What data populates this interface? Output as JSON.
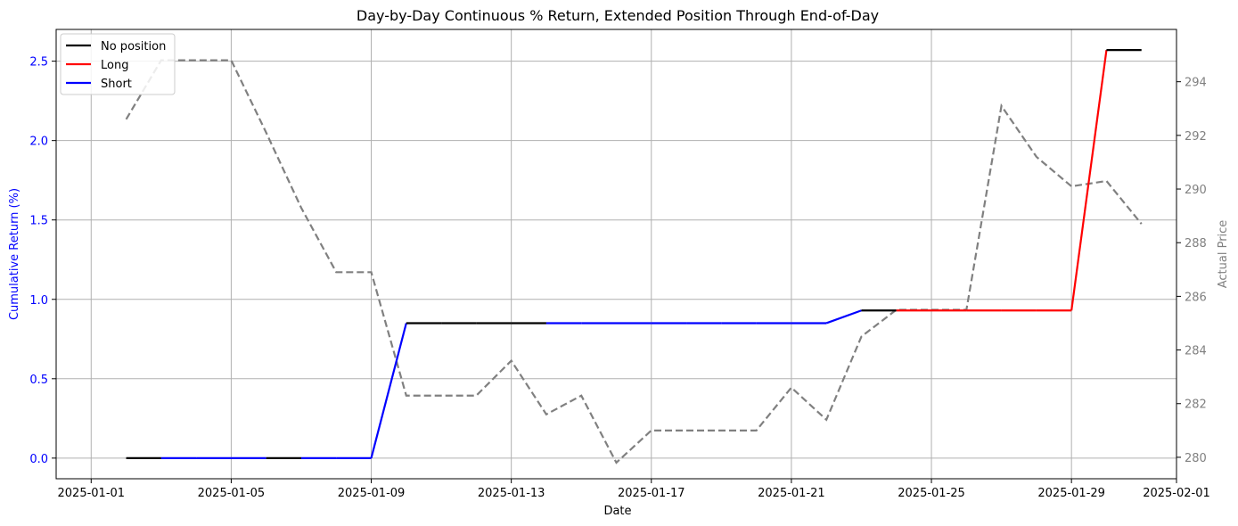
{
  "chart_data": {
    "type": "line",
    "title": "Day-by-Day Continuous % Return, Extended Position Through End-of-Day",
    "xlabel": "Date",
    "ylabel_left": "Cumulative Return (%)",
    "ylabel_right": "Actual Price",
    "grid": true,
    "legend_position": "top-left",
    "x_axis": {
      "type": "date",
      "min": "2025-01-00",
      "max": "2025-02-01",
      "tick_labels": [
        "2025-01-01",
        "2025-01-05",
        "2025-01-09",
        "2025-01-13",
        "2025-01-17",
        "2025-01-21",
        "2025-01-25",
        "2025-01-29",
        "2025-02-01"
      ]
    },
    "y_left": {
      "min": -0.13,
      "max": 2.7,
      "ticks": [
        0.0,
        0.5,
        1.0,
        1.5,
        2.0,
        2.5
      ],
      "tick_labels": [
        "0.0",
        "0.5",
        "1.0",
        "1.5",
        "2.0",
        "2.5"
      ],
      "color": "#0000ff"
    },
    "y_right": {
      "min": 279.2,
      "max": 295.95,
      "ticks": [
        280,
        282,
        284,
        286,
        288,
        290,
        292,
        294
      ],
      "tick_labels": [
        "280",
        "282",
        "284",
        "286",
        "288",
        "290",
        "292",
        "294"
      ],
      "color": "#808080"
    },
    "legend": [
      {
        "label": "No position",
        "color": "#000000"
      },
      {
        "label": "Long",
        "color": "#ff0000"
      },
      {
        "label": "Short",
        "color": "#0000ff"
      }
    ],
    "position_segments": [
      {
        "x1": "2025-01-02",
        "y1": 0.0,
        "x2": "2025-01-03",
        "y2": 0.0,
        "position": "No position"
      },
      {
        "x1": "2025-01-03",
        "y1": 0.0,
        "x2": "2025-01-04",
        "y2": 0.0,
        "position": "Short"
      },
      {
        "x1": "2025-01-04",
        "y1": 0.0,
        "x2": "2025-01-05",
        "y2": 0.0,
        "position": "Short"
      },
      {
        "x1": "2025-01-05",
        "y1": 0.0,
        "x2": "2025-01-06",
        "y2": 0.0,
        "position": "Short"
      },
      {
        "x1": "2025-01-06",
        "y1": 0.0,
        "x2": "2025-01-07",
        "y2": 0.0,
        "position": "No position"
      },
      {
        "x1": "2025-01-07",
        "y1": 0.0,
        "x2": "2025-01-08",
        "y2": 0.0,
        "position": "Short"
      },
      {
        "x1": "2025-01-08",
        "y1": 0.0,
        "x2": "2025-01-09",
        "y2": 0.0,
        "position": "Short"
      },
      {
        "x1": "2025-01-09",
        "y1": 0.0,
        "x2": "2025-01-10",
        "y2": 0.85,
        "position": "Short"
      },
      {
        "x1": "2025-01-10",
        "y1": 0.85,
        "x2": "2025-01-11",
        "y2": 0.85,
        "position": "No position"
      },
      {
        "x1": "2025-01-11",
        "y1": 0.85,
        "x2": "2025-01-12",
        "y2": 0.85,
        "position": "No position"
      },
      {
        "x1": "2025-01-12",
        "y1": 0.85,
        "x2": "2025-01-13",
        "y2": 0.85,
        "position": "No position"
      },
      {
        "x1": "2025-01-13",
        "y1": 0.85,
        "x2": "2025-01-14",
        "y2": 0.85,
        "position": "No position"
      },
      {
        "x1": "2025-01-14",
        "y1": 0.85,
        "x2": "2025-01-15",
        "y2": 0.85,
        "position": "Short"
      },
      {
        "x1": "2025-01-15",
        "y1": 0.85,
        "x2": "2025-01-16",
        "y2": 0.85,
        "position": "Short"
      },
      {
        "x1": "2025-01-16",
        "y1": 0.85,
        "x2": "2025-01-17",
        "y2": 0.85,
        "position": "Short"
      },
      {
        "x1": "2025-01-17",
        "y1": 0.85,
        "x2": "2025-01-18",
        "y2": 0.85,
        "position": "Short"
      },
      {
        "x1": "2025-01-18",
        "y1": 0.85,
        "x2": "2025-01-19",
        "y2": 0.85,
        "position": "Short"
      },
      {
        "x1": "2025-01-19",
        "y1": 0.85,
        "x2": "2025-01-20",
        "y2": 0.85,
        "position": "Short"
      },
      {
        "x1": "2025-01-20",
        "y1": 0.85,
        "x2": "2025-01-21",
        "y2": 0.85,
        "position": "Short"
      },
      {
        "x1": "2025-01-21",
        "y1": 0.85,
        "x2": "2025-01-22",
        "y2": 0.85,
        "position": "Short"
      },
      {
        "x1": "2025-01-22",
        "y1": 0.85,
        "x2": "2025-01-23",
        "y2": 0.93,
        "position": "Short"
      },
      {
        "x1": "2025-01-23",
        "y1": 0.93,
        "x2": "2025-01-24",
        "y2": 0.93,
        "position": "No position"
      },
      {
        "x1": "2025-01-24",
        "y1": 0.93,
        "x2": "2025-01-25",
        "y2": 0.93,
        "position": "Long"
      },
      {
        "x1": "2025-01-25",
        "y1": 0.93,
        "x2": "2025-01-26",
        "y2": 0.93,
        "position": "Long"
      },
      {
        "x1": "2025-01-26",
        "y1": 0.93,
        "x2": "2025-01-27",
        "y2": 0.93,
        "position": "Long"
      },
      {
        "x1": "2025-01-27",
        "y1": 0.93,
        "x2": "2025-01-28",
        "y2": 0.93,
        "position": "Long"
      },
      {
        "x1": "2025-01-28",
        "y1": 0.93,
        "x2": "2025-01-29",
        "y2": 0.93,
        "position": "Long"
      },
      {
        "x1": "2025-01-29",
        "y1": 0.93,
        "x2": "2025-01-30",
        "y2": 2.57,
        "position": "Long"
      },
      {
        "x1": "2025-01-30",
        "y1": 2.57,
        "x2": "2025-01-31",
        "y2": 2.57,
        "position": "No position"
      }
    ],
    "price_series": {
      "style": "dashed",
      "color": "#808080",
      "x": [
        "2025-01-02",
        "2025-01-03",
        "2025-01-04",
        "2025-01-05",
        "2025-01-06",
        "2025-01-07",
        "2025-01-08",
        "2025-01-09",
        "2025-01-10",
        "2025-01-11",
        "2025-01-12",
        "2025-01-13",
        "2025-01-14",
        "2025-01-15",
        "2025-01-16",
        "2025-01-17",
        "2025-01-18",
        "2025-01-19",
        "2025-01-20",
        "2025-01-21",
        "2025-01-22",
        "2025-01-23",
        "2025-01-24",
        "2025-01-25",
        "2025-01-26",
        "2025-01-27",
        "2025-01-28",
        "2025-01-29",
        "2025-01-30",
        "2025-01-31"
      ],
      "y": [
        292.6,
        294.8,
        294.8,
        294.8,
        292.1,
        289.3,
        286.9,
        286.9,
        282.3,
        282.3,
        282.3,
        283.6,
        281.6,
        282.3,
        279.8,
        281.0,
        281.0,
        281.0,
        281.0,
        282.6,
        281.4,
        284.5,
        285.5,
        285.5,
        285.5,
        293.1,
        291.2,
        290.1,
        290.3,
        288.7
      ]
    }
  }
}
